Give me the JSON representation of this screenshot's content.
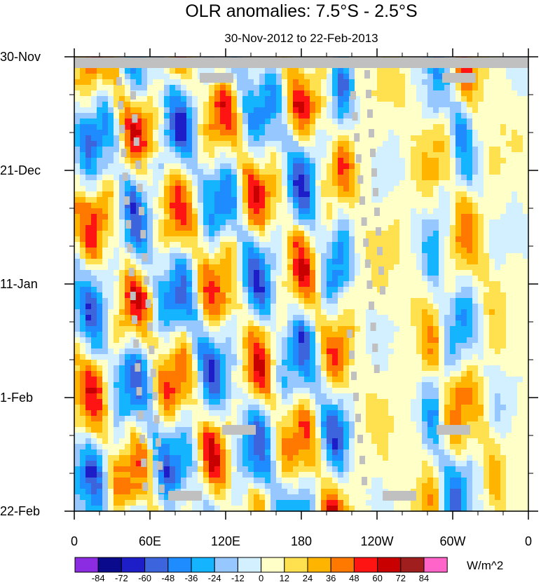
{
  "chart_data": {
    "type": "heatmap",
    "title": "OLR anomalies: 7.5°S - 2.5°S",
    "subtitle": "30-Nov-2012 to 22-Feb-2013",
    "x_ticks": [
      "0",
      "60E",
      "120E",
      "180",
      "120W",
      "60W",
      "0"
    ],
    "y_ticks": [
      "30-Nov",
      "21-Dec",
      "11-Jan",
      "1-Feb",
      "22-Feb"
    ],
    "colorbar": {
      "labels": [
        "-84",
        "-72",
        "-60",
        "-48",
        "-36",
        "-24",
        "-12",
        "0",
        "12",
        "24",
        "36",
        "48",
        "60",
        "72",
        "84"
      ],
      "colors": [
        "#8b2be2",
        "#0a0a8c",
        "#1e1ec8",
        "#3c64dc",
        "#1e8cff",
        "#14b4ff",
        "#96c8ff",
        "#d2f0ff",
        "#ffffc8",
        "#ffe150",
        "#ffb400",
        "#ff7800",
        "#ff1414",
        "#c80000",
        "#a01e1e",
        "#ff64c8"
      ],
      "unit": "W/m^2"
    },
    "missing_color": "#c0c0c0",
    "grid": false
  }
}
